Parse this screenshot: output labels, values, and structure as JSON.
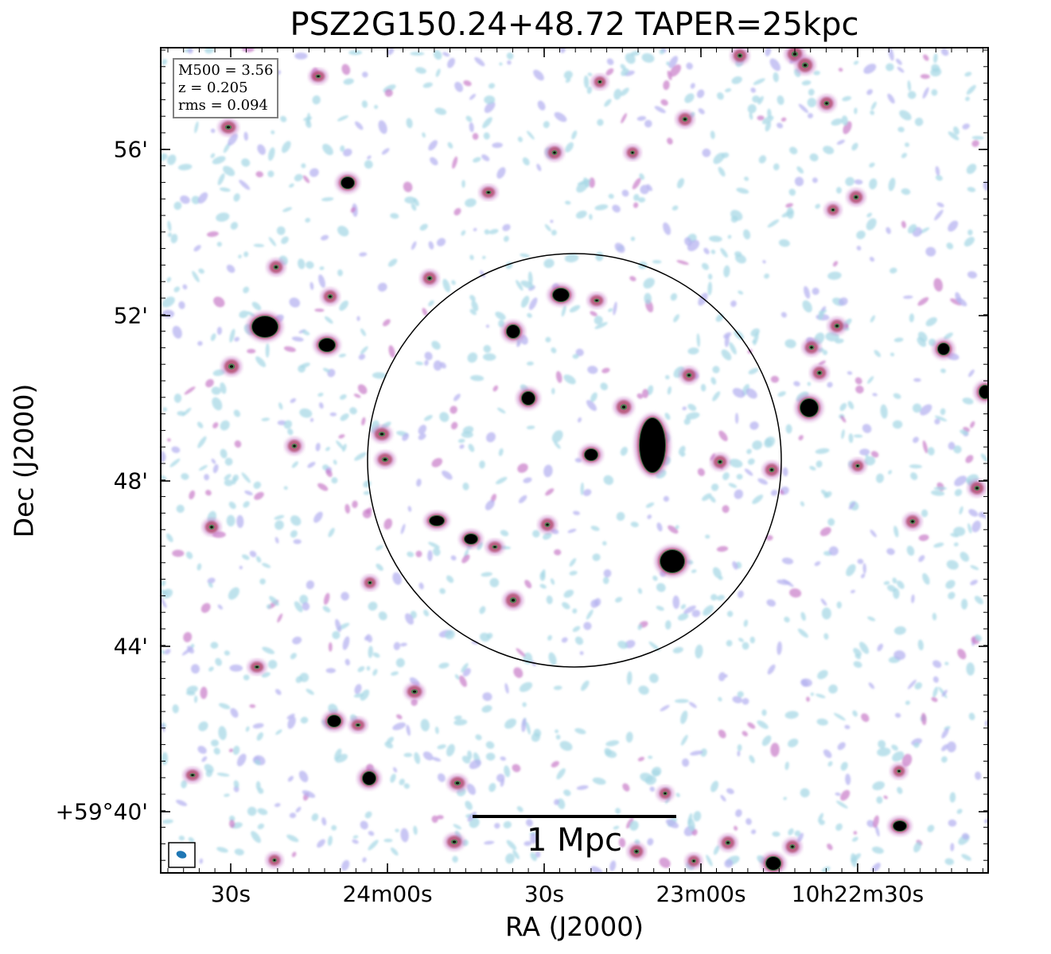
{
  "figure": {
    "title": "PSZ2G150.24+48.72 TAPER=25kpc",
    "xlabel": "RA (J2000)",
    "ylabel": "Dec (J2000)",
    "xtick_labels": [
      "30s",
      "24m00s",
      "30s",
      "23m00s",
      "10h22m30s"
    ],
    "ytick_labels": [
      "56'",
      "52'",
      "48'",
      "44'",
      "+59°40'"
    ],
    "info": {
      "line1": "M500 = 3.56",
      "line2": "z = 0.205",
      "line3": "rms = 0.094"
    },
    "scalebar_label": "1 Mpc",
    "colors": {
      "axes": "#000000",
      "beam": "#1f77b4",
      "noise_light": "#a8d8e6",
      "noise_mid": "#b7b3f0",
      "noise_pink": "#c87ac8",
      "source_core": "#000000",
      "source_ring": "#2d6b3f"
    }
  }
}
